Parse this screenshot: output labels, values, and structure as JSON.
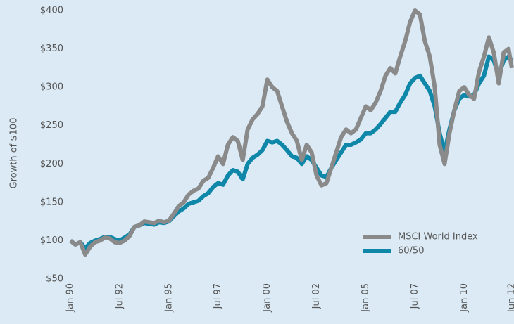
{
  "chart_data": {
    "type": "line",
    "y_label": "Growth of $100",
    "x": [
      1990,
      1990.25,
      1990.5,
      1990.75,
      1991,
      1991.25,
      1991.5,
      1991.75,
      1992,
      1992.25,
      1992.5,
      1992.75,
      1993,
      1993.25,
      1993.5,
      1993.75,
      1994,
      1994.25,
      1994.5,
      1994.75,
      1995,
      1995.25,
      1995.5,
      1995.75,
      1996,
      1996.25,
      1996.5,
      1996.75,
      1997,
      1997.25,
      1997.5,
      1997.75,
      1998,
      1998.25,
      1998.5,
      1998.75,
      1999,
      1999.25,
      1999.5,
      1999.75,
      2000,
      2000.25,
      2000.5,
      2000.75,
      2001,
      2001.25,
      2001.5,
      2001.75,
      2002,
      2002.25,
      2002.5,
      2002.75,
      2003,
      2003.25,
      2003.5,
      2003.75,
      2004,
      2004.25,
      2004.5,
      2004.75,
      2005,
      2005.25,
      2005.5,
      2005.75,
      2006,
      2006.25,
      2006.5,
      2006.75,
      2007,
      2007.25,
      2007.5,
      2007.75,
      2008,
      2008.25,
      2008.5,
      2008.75,
      2009,
      2009.25,
      2009.5,
      2009.75,
      2010,
      2010.25,
      2010.5,
      2010.75,
      2011,
      2011.25,
      2011.5,
      2011.75,
      2012,
      2012.25,
      2012.42
    ],
    "series": [
      {
        "name": "MSCI World Index",
        "color": "#8a8a8a",
        "values": [
          100,
          95,
          98,
          82,
          92,
          98,
          100,
          104,
          103,
          98,
          97,
          100,
          106,
          118,
          120,
          125,
          124,
          123,
          126,
          124,
          126,
          135,
          145,
          150,
          160,
          165,
          168,
          178,
          182,
          195,
          210,
          200,
          225,
          235,
          230,
          205,
          245,
          258,
          265,
          275,
          310,
          300,
          295,
          275,
          255,
          240,
          230,
          205,
          225,
          215,
          185,
          172,
          175,
          195,
          215,
          235,
          245,
          240,
          245,
          260,
          275,
          270,
          280,
          295,
          315,
          325,
          318,
          340,
          360,
          385,
          400,
          395,
          360,
          340,
          300,
          225,
          200,
          240,
          270,
          295,
          300,
          290,
          285,
          320,
          340,
          365,
          345,
          305,
          345,
          350,
          325
        ]
      },
      {
        "name": "60/50",
        "color": "#0e87a8",
        "values": [
          100,
          95,
          98,
          90,
          97,
          100,
          102,
          105,
          105,
          102,
          100,
          104,
          108,
          118,
          120,
          123,
          122,
          121,
          124,
          123,
          125,
          132,
          138,
          142,
          148,
          150,
          152,
          158,
          162,
          170,
          175,
          173,
          185,
          192,
          190,
          180,
          200,
          208,
          212,
          218,
          230,
          228,
          230,
          225,
          218,
          210,
          208,
          200,
          210,
          205,
          195,
          185,
          183,
          195,
          205,
          215,
          225,
          225,
          228,
          232,
          240,
          240,
          245,
          252,
          260,
          268,
          268,
          280,
          290,
          305,
          312,
          315,
          305,
          295,
          275,
          240,
          215,
          245,
          270,
          285,
          290,
          288,
          290,
          305,
          315,
          340,
          335,
          315,
          335,
          340,
          335
        ]
      }
    ],
    "xlim": [
      1990,
      2012.42
    ],
    "xticks": [
      {
        "value": 1990,
        "label": "Jan 90"
      },
      {
        "value": 1992.5,
        "label": "Jul 92"
      },
      {
        "value": 1995,
        "label": "Jan 95"
      },
      {
        "value": 1997.5,
        "label": "Jul 97"
      },
      {
        "value": 2000,
        "label": "Jan 00"
      },
      {
        "value": 2002.5,
        "label": "Jul 02"
      },
      {
        "value": 2005,
        "label": "Jan 05"
      },
      {
        "value": 2007.5,
        "label": "Jul 07"
      },
      {
        "value": 2010,
        "label": "Jan 10"
      },
      {
        "value": 2012.42,
        "label": "Jun 12"
      }
    ],
    "ylim": [
      50,
      400
    ],
    "yticks": [
      {
        "value": 50,
        "label": "$50"
      },
      {
        "value": 100,
        "label": "$100"
      },
      {
        "value": 150,
        "label": "$150"
      },
      {
        "value": 200,
        "label": "$200"
      },
      {
        "value": 250,
        "label": "$250"
      },
      {
        "value": 300,
        "label": "$300"
      },
      {
        "value": 350,
        "label": "$350"
      },
      {
        "value": 400,
        "label": "$400"
      }
    ],
    "legend": "lower right"
  }
}
